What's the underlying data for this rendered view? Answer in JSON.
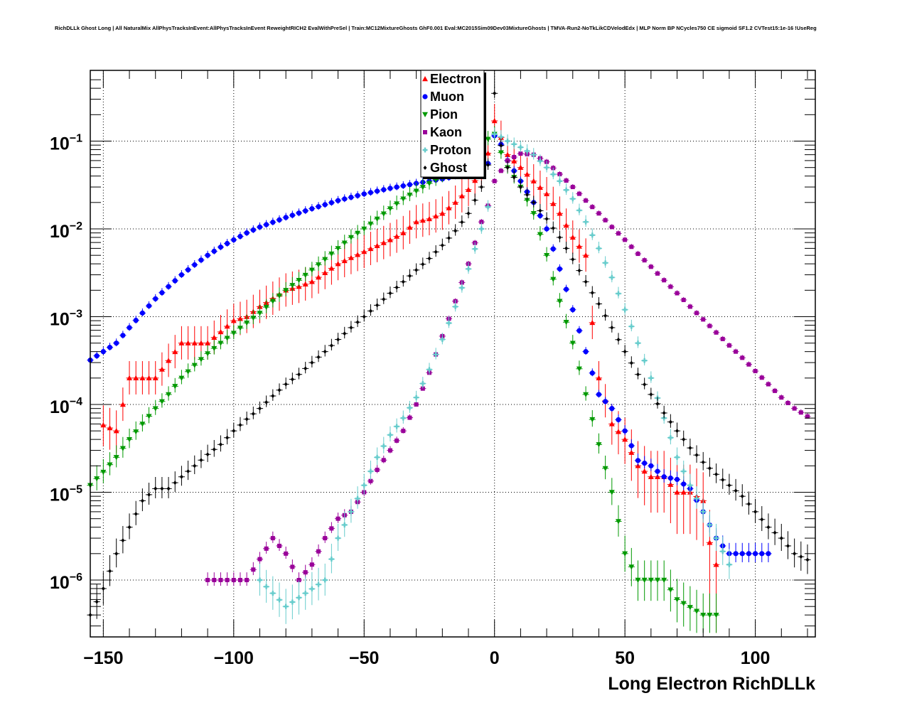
{
  "chart_data": {
    "type": "scatter",
    "title": "RichDLLk Ghost Long | All NaturalMix AllPhysTracksInEvent:AllPhysTracksInEvent ReweightRICH2 EvalWithPreSel | Train:MC12MixtureGhosts GhF0.001 Eval:MC2015Sim09Dev03MixtureGhosts | TMVA-Run2-NoTkLikCDVelodEdx | MLP Norm BP NCycles750 CE sigmoid SF1.2 CVTest15:1e-16 !UseReg",
    "xlabel": "Long Electron RichDLLk",
    "ylabel": "",
    "xlim": [
      -155,
      123
    ],
    "ylim": [
      2.5e-07,
      0.6
    ],
    "y_scale": "log",
    "grid": true,
    "legend_position": "top-center",
    "x_tick_labels": [
      "−150",
      "−100",
      "−50",
      "0",
      "50",
      "100"
    ],
    "x_ticks": [
      -150,
      -100,
      -50,
      0,
      50,
      100
    ],
    "y_tick_labels": [
      {
        "base": "10",
        "exp": "−1"
      },
      {
        "base": "10",
        "exp": "−2"
      },
      {
        "base": "10",
        "exp": "−3"
      },
      {
        "base": "10",
        "exp": "−4"
      },
      {
        "base": "10",
        "exp": "−5"
      },
      {
        "base": "10",
        "exp": "−6"
      }
    ],
    "y_ticks": [
      0.1,
      0.01,
      0.001,
      0.0001,
      1e-05,
      1e-06
    ],
    "series": [
      {
        "name": "Electron",
        "color": "#ff0000",
        "marker": "triangle-up",
        "anchors": [
          [
            -151,
            6e-05
          ],
          [
            -145,
            5e-05
          ],
          [
            -140,
            0.0002
          ],
          [
            -130,
            0.0002
          ],
          [
            -120,
            0.0005
          ],
          [
            -110,
            0.0005
          ],
          [
            -100,
            0.0009
          ],
          [
            -95,
            0.001
          ],
          [
            -90,
            0.0013
          ],
          [
            -80,
            0.002
          ],
          [
            -75,
            0.0022
          ],
          [
            -70,
            0.0025
          ],
          [
            -60,
            0.004
          ],
          [
            -50,
            0.0055
          ],
          [
            -40,
            0.0075
          ],
          [
            -35,
            0.009
          ],
          [
            -30,
            0.012
          ],
          [
            -25,
            0.013
          ],
          [
            -20,
            0.015
          ],
          [
            -15,
            0.02
          ],
          [
            -10,
            0.028
          ],
          [
            -5,
            0.045
          ],
          [
            -2,
            0.08
          ],
          [
            0,
            0.17
          ],
          [
            2,
            0.12
          ],
          [
            5,
            0.07
          ],
          [
            10,
            0.05
          ],
          [
            15,
            0.035
          ],
          [
            20,
            0.025
          ],
          [
            25,
            0.015
          ],
          [
            30,
            0.008
          ],
          [
            35,
            0.005
          ],
          [
            38,
            0.0006
          ],
          [
            40,
            0.0002
          ],
          [
            45,
            6e-05
          ],
          [
            50,
            4e-05
          ],
          [
            55,
            2e-05
          ],
          [
            60,
            1.5e-05
          ],
          [
            65,
            1.5e-05
          ],
          [
            70,
            1e-05
          ],
          [
            75,
            1e-05
          ],
          [
            80,
            8e-06
          ],
          [
            82,
            3e-06
          ],
          [
            85,
            1.5e-06
          ]
        ],
        "err": 0.35
      },
      {
        "name": "Muon",
        "color": "#0000ff",
        "marker": "circle",
        "anchors": [
          [
            -155,
            0.00032
          ],
          [
            -150,
            0.0004
          ],
          [
            -145,
            0.0005
          ],
          [
            -140,
            0.00075
          ],
          [
            -135,
            0.0011
          ],
          [
            -130,
            0.0016
          ],
          [
            -125,
            0.0022
          ],
          [
            -120,
            0.003
          ],
          [
            -115,
            0.0039
          ],
          [
            -110,
            0.005
          ],
          [
            -105,
            0.0062
          ],
          [
            -100,
            0.0075
          ],
          [
            -95,
            0.009
          ],
          [
            -90,
            0.0105
          ],
          [
            -80,
            0.0135
          ],
          [
            -70,
            0.017
          ],
          [
            -60,
            0.021
          ],
          [
            -50,
            0.025
          ],
          [
            -40,
            0.029
          ],
          [
            -30,
            0.033
          ],
          [
            -20,
            0.037
          ],
          [
            -10,
            0.043
          ],
          [
            -5,
            0.049
          ],
          [
            -1,
            0.06
          ],
          [
            0,
            0.115
          ],
          [
            2,
            0.1
          ],
          [
            5,
            0.06
          ],
          [
            10,
            0.035
          ],
          [
            15,
            0.02
          ],
          [
            20,
            0.01
          ],
          [
            25,
            0.0035
          ],
          [
            30,
            0.0012
          ],
          [
            35,
            0.0004
          ],
          [
            40,
            0.00013
          ],
          [
            45,
            9e-05
          ],
          [
            50,
            5e-05
          ],
          [
            55,
            2.3e-05
          ],
          [
            60,
            2e-05
          ],
          [
            65,
            1.5e-05
          ],
          [
            70,
            1.4e-05
          ],
          [
            75,
            1.1e-05
          ],
          [
            80,
            6e-06
          ],
          [
            85,
            3e-06
          ],
          [
            90,
            2e-06
          ],
          [
            95,
            2e-06
          ],
          [
            100,
            2e-06
          ],
          [
            105,
            2e-06
          ]
        ],
        "err": 0.08
      },
      {
        "name": "Pion",
        "color": "#009900",
        "marker": "triangle-down",
        "anchors": [
          [
            -155,
            1.2e-05
          ],
          [
            -150,
            1.7e-05
          ],
          [
            -145,
            2.5e-05
          ],
          [
            -140,
            4e-05
          ],
          [
            -135,
            6e-05
          ],
          [
            -130,
            9e-05
          ],
          [
            -125,
            0.00013
          ],
          [
            -120,
            0.0002
          ],
          [
            -115,
            0.00028
          ],
          [
            -110,
            0.00038
          ],
          [
            -105,
            0.0005
          ],
          [
            -100,
            0.00065
          ],
          [
            -95,
            0.00085
          ],
          [
            -90,
            0.0011
          ],
          [
            -85,
            0.0015
          ],
          [
            -80,
            0.002
          ],
          [
            -75,
            0.0026
          ],
          [
            -70,
            0.0034
          ],
          [
            -65,
            0.0045
          ],
          [
            -60,
            0.006
          ],
          [
            -55,
            0.008
          ],
          [
            -50,
            0.01
          ],
          [
            -45,
            0.013
          ],
          [
            -40,
            0.017
          ],
          [
            -35,
            0.022
          ],
          [
            -30,
            0.027
          ],
          [
            -25,
            0.033
          ],
          [
            -20,
            0.04
          ],
          [
            -15,
            0.05
          ],
          [
            -10,
            0.065
          ],
          [
            -5,
            0.085
          ],
          [
            -2,
            0.11
          ],
          [
            0,
            0.12
          ],
          [
            2,
            0.08
          ],
          [
            5,
            0.05
          ],
          [
            10,
            0.03
          ],
          [
            15,
            0.015
          ],
          [
            20,
            0.005
          ],
          [
            22,
            0.003
          ],
          [
            25,
            0.0015
          ],
          [
            30,
            0.0005
          ],
          [
            35,
            0.00013
          ],
          [
            40,
            3.5e-05
          ],
          [
            45,
            1e-05
          ],
          [
            48,
            4e-06
          ],
          [
            50,
            2e-06
          ],
          [
            55,
            1e-06
          ],
          [
            60,
            1e-06
          ],
          [
            65,
            1e-06
          ],
          [
            70,
            6e-07
          ],
          [
            80,
            4e-07
          ],
          [
            85,
            4e-07
          ]
        ],
        "err": 0.15
      },
      {
        "name": "Kaon",
        "color": "#990099",
        "marker": "square",
        "anchors": [
          [
            -112,
            1e-06
          ],
          [
            -100,
            1e-06
          ],
          [
            -95,
            1e-06
          ],
          [
            -85,
            3e-06
          ],
          [
            -80,
            2e-06
          ],
          [
            -75,
            1e-06
          ],
          [
            -70,
            1.5e-06
          ],
          [
            -65,
            3e-06
          ],
          [
            -60,
            5e-06
          ],
          [
            -55,
            6e-06
          ],
          [
            -50,
            1e-05
          ],
          [
            -45,
            1.8e-05
          ],
          [
            -40,
            3e-05
          ],
          [
            -35,
            5e-05
          ],
          [
            -30,
            0.0001
          ],
          [
            -25,
            0.00023
          ],
          [
            -20,
            0.0006
          ],
          [
            -15,
            0.0015
          ],
          [
            -10,
            0.004
          ],
          [
            -5,
            0.012
          ],
          [
            -2,
            0.02
          ],
          [
            0,
            0.035
          ],
          [
            5,
            0.06
          ],
          [
            10,
            0.072
          ],
          [
            15,
            0.07
          ],
          [
            20,
            0.058
          ],
          [
            25,
            0.042
          ],
          [
            30,
            0.03
          ],
          [
            35,
            0.021
          ],
          [
            40,
            0.015
          ],
          [
            45,
            0.0105
          ],
          [
            50,
            0.0075
          ],
          [
            55,
            0.0052
          ],
          [
            60,
            0.0037
          ],
          [
            65,
            0.0026
          ],
          [
            70,
            0.00185
          ],
          [
            75,
            0.0013
          ],
          [
            80,
            0.00093
          ],
          [
            85,
            0.00066
          ],
          [
            90,
            0.00047
          ],
          [
            95,
            0.00034
          ],
          [
            100,
            0.00024
          ],
          [
            105,
            0.00017
          ],
          [
            110,
            0.00012
          ],
          [
            115,
            9e-05
          ],
          [
            121,
            7e-05
          ]
        ],
        "err": 0.05
      },
      {
        "name": "Proton",
        "color": "#66cccc",
        "marker": "plus",
        "anchors": [
          [
            -90,
            1e-06
          ],
          [
            -80,
            5e-07
          ],
          [
            -65,
            1e-06
          ],
          [
            -60,
            3e-06
          ],
          [
            -55,
            6e-06
          ],
          [
            -50,
            1.2e-05
          ],
          [
            -45,
            2.5e-05
          ],
          [
            -40,
            4.5e-05
          ],
          [
            -35,
            7e-05
          ],
          [
            -30,
            0.00012
          ],
          [
            -25,
            0.00025
          ],
          [
            -20,
            0.00055
          ],
          [
            -15,
            0.0013
          ],
          [
            -10,
            0.0035
          ],
          [
            -5,
            0.01
          ],
          [
            -2,
            0.02
          ],
          [
            0,
            0.12
          ],
          [
            3,
            0.11
          ],
          [
            5,
            0.1
          ],
          [
            10,
            0.085
          ],
          [
            15,
            0.07
          ],
          [
            20,
            0.05
          ],
          [
            25,
            0.035
          ],
          [
            30,
            0.022
          ],
          [
            35,
            0.012
          ],
          [
            40,
            0.006
          ],
          [
            45,
            0.0028
          ],
          [
            50,
            0.0012
          ],
          [
            55,
            0.0005
          ],
          [
            60,
            0.0002
          ],
          [
            65,
            7e-05
          ],
          [
            70,
            2.5e-05
          ],
          [
            75,
            1.2e-05
          ],
          [
            80,
            6e-06
          ],
          [
            85,
            3e-06
          ],
          [
            90,
            1.5e-06
          ]
        ],
        "err": 0.12
      },
      {
        "name": "Ghost",
        "color": "#000000",
        "marker": "diamond",
        "anchors": [
          [
            -155,
            4e-07
          ],
          [
            -150,
            8e-07
          ],
          [
            -145,
            2e-06
          ],
          [
            -140,
            4e-06
          ],
          [
            -135,
            8e-06
          ],
          [
            -130,
            1.1e-05
          ],
          [
            -125,
            1.1e-05
          ],
          [
            -120,
            1.5e-05
          ],
          [
            -115,
            2e-05
          ],
          [
            -110,
            2.7e-05
          ],
          [
            -105,
            3.5e-05
          ],
          [
            -100,
            5e-05
          ],
          [
            -95,
            6.8e-05
          ],
          [
            -90,
            9e-05
          ],
          [
            -85,
            0.000125
          ],
          [
            -80,
            0.00017
          ],
          [
            -75,
            0.00022
          ],
          [
            -70,
            0.0003
          ],
          [
            -65,
            0.0004
          ],
          [
            -60,
            0.00055
          ],
          [
            -55,
            0.00075
          ],
          [
            -50,
            0.001
          ],
          [
            -45,
            0.00135
          ],
          [
            -40,
            0.00185
          ],
          [
            -35,
            0.0025
          ],
          [
            -30,
            0.0034
          ],
          [
            -25,
            0.0046
          ],
          [
            -20,
            0.0065
          ],
          [
            -15,
            0.0095
          ],
          [
            -10,
            0.015
          ],
          [
            -5,
            0.03
          ],
          [
            -2,
            0.06
          ],
          [
            0,
            0.35
          ],
          [
            2,
            0.1
          ],
          [
            5,
            0.05
          ],
          [
            10,
            0.03
          ],
          [
            15,
            0.02
          ],
          [
            20,
            0.013
          ],
          [
            25,
            0.008
          ],
          [
            30,
            0.0045
          ],
          [
            35,
            0.0025
          ],
          [
            40,
            0.0014
          ],
          [
            45,
            0.00075
          ],
          [
            50,
            0.0004
          ],
          [
            55,
            0.00022
          ],
          [
            60,
            0.00013
          ],
          [
            65,
            8e-05
          ],
          [
            70,
            5e-05
          ],
          [
            75,
            3.2e-05
          ],
          [
            80,
            2.2e-05
          ],
          [
            85,
            1.6e-05
          ],
          [
            90,
            1.2e-05
          ],
          [
            95,
            9e-06
          ],
          [
            100,
            6e-06
          ],
          [
            105,
            4e-06
          ],
          [
            110,
            3e-06
          ],
          [
            115,
            2e-06
          ],
          [
            120,
            1.7e-06
          ]
        ],
        "err": 0.12
      }
    ]
  }
}
